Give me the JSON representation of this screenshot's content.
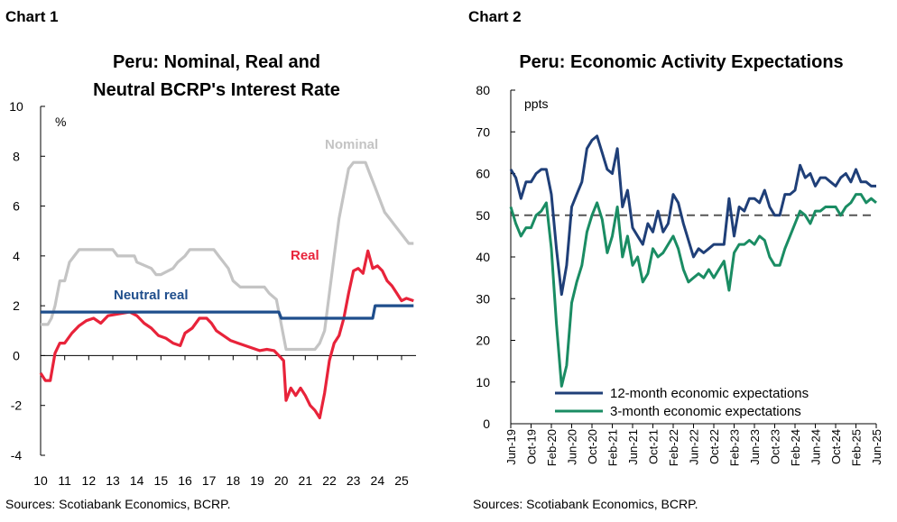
{
  "charts": [
    {
      "chart_label": "Chart 1",
      "title_lines": [
        "Peru: Nominal, Real and",
        "Neutral BCRP's Interest Rate"
      ],
      "source": "Sources: Scotiabank Economics, BCRP.",
      "unit": "%"
    },
    {
      "chart_label": "Chart 2",
      "title_lines": [
        "Peru: Economic Activity Expectations"
      ],
      "source": "Sources: Scotiabank Economics, BCRP.",
      "unit": "ppts"
    }
  ],
  "colors": {
    "nominal": "#c4c4c4",
    "real": "#e8233a",
    "neutral": "#1f4e8c",
    "twelve_month": "#1f3f78",
    "three_month": "#1a8c63",
    "reference": "#555555"
  },
  "chart_data": [
    {
      "type": "line",
      "title": "Peru: Nominal, Real and Neutral BCRP's Interest Rate",
      "ylabel": "%",
      "ylim": [
        -4,
        10
      ],
      "yticks": [
        -4,
        -2,
        0,
        2,
        4,
        6,
        8,
        10
      ],
      "xlim": [
        2010.0,
        2025.6
      ],
      "xticks": [
        {
          "x": 2010,
          "label": "10"
        },
        {
          "x": 2011,
          "label": "11"
        },
        {
          "x": 2012,
          "label": "12"
        },
        {
          "x": 2013,
          "label": "13"
        },
        {
          "x": 2014,
          "label": "14"
        },
        {
          "x": 2015,
          "label": "15"
        },
        {
          "x": 2016,
          "label": "16"
        },
        {
          "x": 2017,
          "label": "17"
        },
        {
          "x": 2018,
          "label": "18"
        },
        {
          "x": 2019,
          "label": "19"
        },
        {
          "x": 2020,
          "label": "20"
        },
        {
          "x": 2021,
          "label": "21"
        },
        {
          "x": 2022,
          "label": "22"
        },
        {
          "x": 2023,
          "label": "23"
        },
        {
          "x": 2024,
          "label": "24"
        },
        {
          "x": 2025,
          "label": "25"
        }
      ],
      "annotations": [
        "Nominal",
        "Real",
        "Neutral real"
      ],
      "series": [
        {
          "name": "Nominal",
          "x": [
            2010.0,
            2010.3,
            2010.45,
            2010.6,
            2010.8,
            2011.0,
            2011.2,
            2011.4,
            2011.6,
            2013.0,
            2013.2,
            2013.9,
            2014.0,
            2014.6,
            2014.8,
            2015.0,
            2015.5,
            2015.7,
            2016.0,
            2016.2,
            2016.3,
            2017.2,
            2017.4,
            2017.6,
            2017.8,
            2018.0,
            2018.3,
            2019.3,
            2019.5,
            2019.8,
            2020.0,
            2020.2,
            2020.3,
            2021.4,
            2021.6,
            2021.8,
            2022.0,
            2022.2,
            2022.4,
            2022.6,
            2022.8,
            2023.0,
            2023.5,
            2023.7,
            2023.9,
            2024.1,
            2024.3,
            2024.5,
            2024.7,
            2024.9,
            2025.1,
            2025.3,
            2025.5
          ],
          "y": [
            1.25,
            1.25,
            1.5,
            2.0,
            3.0,
            3.0,
            3.75,
            4.0,
            4.25,
            4.25,
            4.0,
            4.0,
            3.75,
            3.5,
            3.25,
            3.25,
            3.5,
            3.75,
            4.0,
            4.25,
            4.25,
            4.25,
            4.0,
            3.75,
            3.5,
            3.0,
            2.75,
            2.75,
            2.5,
            2.25,
            1.25,
            0.25,
            0.25,
            0.25,
            0.5,
            1.0,
            2.5,
            4.0,
            5.5,
            6.5,
            7.5,
            7.75,
            7.75,
            7.25,
            6.75,
            6.25,
            5.75,
            5.5,
            5.25,
            5.0,
            4.75,
            4.5,
            4.5
          ]
        },
        {
          "name": "Real",
          "x": [
            2010.0,
            2010.2,
            2010.4,
            2010.6,
            2010.8,
            2011.0,
            2011.3,
            2011.6,
            2011.9,
            2012.2,
            2012.5,
            2012.8,
            2013.1,
            2013.4,
            2013.7,
            2014.0,
            2014.3,
            2014.6,
            2014.9,
            2015.2,
            2015.5,
            2015.8,
            2016.0,
            2016.3,
            2016.6,
            2016.9,
            2017.1,
            2017.3,
            2017.6,
            2017.9,
            2018.2,
            2018.5,
            2018.8,
            2019.1,
            2019.4,
            2019.7,
            2019.9,
            2020.1,
            2020.2,
            2020.4,
            2020.6,
            2020.8,
            2021.0,
            2021.2,
            2021.4,
            2021.6,
            2021.8,
            2022.0,
            2022.2,
            2022.4,
            2022.6,
            2022.8,
            2023.0,
            2023.2,
            2023.4,
            2023.6,
            2023.8,
            2024.0,
            2024.2,
            2024.4,
            2024.6,
            2024.8,
            2025.0,
            2025.2,
            2025.5
          ],
          "y": [
            -0.7,
            -1.0,
            -1.0,
            0.1,
            0.5,
            0.5,
            0.9,
            1.2,
            1.4,
            1.5,
            1.3,
            1.6,
            1.65,
            1.7,
            1.75,
            1.6,
            1.3,
            1.1,
            0.8,
            0.7,
            0.5,
            0.4,
            0.9,
            1.1,
            1.5,
            1.5,
            1.3,
            1.0,
            0.8,
            0.6,
            0.5,
            0.4,
            0.3,
            0.2,
            0.25,
            0.2,
            0.0,
            -0.2,
            -1.8,
            -1.3,
            -1.6,
            -1.3,
            -1.6,
            -2.0,
            -2.2,
            -2.5,
            -1.5,
            -0.2,
            0.5,
            0.8,
            1.5,
            2.5,
            3.4,
            3.5,
            3.3,
            4.2,
            3.5,
            3.6,
            3.4,
            3.0,
            2.8,
            2.5,
            2.2,
            2.3,
            2.2
          ]
        },
        {
          "name": "Neutral real",
          "x": [
            2010.0,
            2019.9,
            2020.0,
            2023.8,
            2023.9,
            2025.5
          ],
          "y": [
            1.75,
            1.75,
            1.5,
            1.5,
            2.0,
            2.0
          ]
        }
      ]
    },
    {
      "type": "line",
      "title": "Peru: Economic Activity Expectations",
      "ylabel": "ppts",
      "ylim": [
        0,
        80
      ],
      "yticks": [
        0,
        10,
        20,
        30,
        40,
        50,
        60,
        70,
        80
      ],
      "xlim": [
        "2019-06",
        "2025-06"
      ],
      "xticks": [
        "Jun-19",
        "Oct-19",
        "Feb-20",
        "Jun-20",
        "Oct-20",
        "Feb-21",
        "Jun-21",
        "Oct-21",
        "Feb-22",
        "Jun-22",
        "Oct-22",
        "Feb-23",
        "Jun-23",
        "Oct-23",
        "Feb-24",
        "Jun-24",
        "Oct-24",
        "Feb-25",
        "Jun-25"
      ],
      "reference_line": 50,
      "series": [
        {
          "name": "12-month economic expectations",
          "x": [
            "2019-06",
            "2019-07",
            "2019-08",
            "2019-09",
            "2019-10",
            "2019-11",
            "2019-12",
            "2020-01",
            "2020-02",
            "2020-03",
            "2020-04",
            "2020-05",
            "2020-06",
            "2020-07",
            "2020-08",
            "2020-09",
            "2020-10",
            "2020-11",
            "2020-12",
            "2021-01",
            "2021-02",
            "2021-03",
            "2021-04",
            "2021-05",
            "2021-06",
            "2021-07",
            "2021-08",
            "2021-09",
            "2021-10",
            "2021-11",
            "2021-12",
            "2022-01",
            "2022-02",
            "2022-03",
            "2022-04",
            "2022-05",
            "2022-06",
            "2022-07",
            "2022-08",
            "2022-09",
            "2022-10",
            "2022-11",
            "2022-12",
            "2023-01",
            "2023-02",
            "2023-03",
            "2023-04",
            "2023-05",
            "2023-06",
            "2023-07",
            "2023-08",
            "2023-09",
            "2023-10",
            "2023-11",
            "2023-12",
            "2024-01",
            "2024-02",
            "2024-03",
            "2024-04",
            "2024-05",
            "2024-06",
            "2024-07",
            "2024-08",
            "2024-09",
            "2024-10",
            "2024-11",
            "2024-12",
            "2025-01",
            "2025-02",
            "2025-03",
            "2025-04",
            "2025-05",
            "2025-06"
          ],
          "y": [
            61,
            59,
            54,
            58,
            58,
            60,
            61,
            61,
            55,
            42,
            31,
            38,
            52,
            55,
            58,
            66,
            68,
            69,
            65,
            61,
            60,
            66,
            52,
            56,
            47,
            45,
            43,
            48,
            46,
            51,
            46,
            48,
            55,
            53,
            48,
            44,
            40,
            42,
            41,
            42,
            43,
            43,
            43,
            54,
            45,
            52,
            51,
            54,
            54,
            53,
            56,
            52,
            50,
            50,
            55,
            55,
            56,
            62,
            59,
            60,
            57,
            59,
            59,
            58,
            57,
            59,
            60,
            58,
            61,
            58,
            58,
            57,
            57
          ]
        },
        {
          "name": "3-month economic expectations",
          "x": [
            "2019-06",
            "2019-07",
            "2019-08",
            "2019-09",
            "2019-10",
            "2019-11",
            "2019-12",
            "2020-01",
            "2020-02",
            "2020-03",
            "2020-04",
            "2020-05",
            "2020-06",
            "2020-07",
            "2020-08",
            "2020-09",
            "2020-10",
            "2020-11",
            "2020-12",
            "2021-01",
            "2021-02",
            "2021-03",
            "2021-04",
            "2021-05",
            "2021-06",
            "2021-07",
            "2021-08",
            "2021-09",
            "2021-10",
            "2021-11",
            "2021-12",
            "2022-01",
            "2022-02",
            "2022-03",
            "2022-04",
            "2022-05",
            "2022-06",
            "2022-07",
            "2022-08",
            "2022-09",
            "2022-10",
            "2022-11",
            "2022-12",
            "2023-01",
            "2023-02",
            "2023-03",
            "2023-04",
            "2023-05",
            "2023-06",
            "2023-07",
            "2023-08",
            "2023-09",
            "2023-10",
            "2023-11",
            "2023-12",
            "2024-01",
            "2024-02",
            "2024-03",
            "2024-04",
            "2024-05",
            "2024-06",
            "2024-07",
            "2024-08",
            "2024-09",
            "2024-10",
            "2024-11",
            "2024-12",
            "2025-01",
            "2025-02",
            "2025-03",
            "2025-04",
            "2025-05",
            "2025-06"
          ],
          "y": [
            52,
            48,
            45,
            47,
            47,
            50,
            51,
            53,
            42,
            24,
            9,
            14,
            29,
            34,
            38,
            46,
            50,
            53,
            49,
            41,
            45,
            52,
            40,
            45,
            38,
            40,
            34,
            36,
            42,
            40,
            41,
            43,
            45,
            42,
            37,
            34,
            35,
            36,
            35,
            37,
            35,
            37,
            39,
            32,
            41,
            43,
            43,
            44,
            43,
            45,
            44,
            40,
            38,
            38,
            42,
            45,
            48,
            51,
            50,
            48,
            51,
            51,
            52,
            52,
            52,
            50,
            52,
            53,
            55,
            55,
            53,
            54,
            53
          ]
        }
      ]
    }
  ]
}
